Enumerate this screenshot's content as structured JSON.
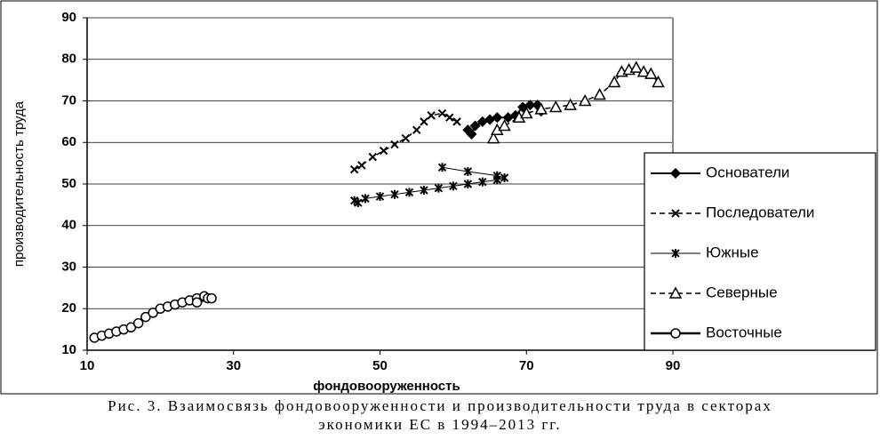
{
  "chart_data": {
    "type": "line",
    "xlabel": "фондовооруженность",
    "ylabel": "производительность труда",
    "xlim": [
      10,
      90
    ],
    "xticks": [
      10,
      30,
      50,
      70,
      90
    ],
    "ylim": [
      10,
      90
    ],
    "yticks": [
      10,
      20,
      30,
      40,
      50,
      60,
      70,
      80,
      90
    ],
    "grid": true,
    "legend": "right",
    "series": [
      {
        "name": "Основатели",
        "color": "#000000",
        "line_style": "solid",
        "marker": "diamond",
        "line_width": 2,
        "x": [
          62,
          62.5,
          63,
          64,
          65,
          66,
          67.5,
          68.5,
          69.5,
          70.5,
          71.5,
          72
        ],
        "values": [
          63,
          62,
          64,
          65,
          65.5,
          66,
          66,
          66.5,
          68.5,
          69,
          69,
          67.5
        ]
      },
      {
        "name": "Последователи",
        "color": "#000000",
        "line_style": "dashed",
        "marker": "x",
        "line_width": 1.5,
        "x": [
          46.5,
          47.5,
          49,
          50.5,
          52,
          53.5,
          55,
          56,
          57,
          58.5,
          59.5,
          60.5
        ],
        "values": [
          53.5,
          54.5,
          56.5,
          58,
          59.5,
          61,
          63,
          65,
          66.5,
          67,
          66,
          65
        ]
      },
      {
        "name": "Южные",
        "color": "#000000",
        "line_style": "solid",
        "marker": "star",
        "line_width": 1,
        "x": [
          46.5,
          47,
          48,
          50,
          52,
          54,
          56,
          58,
          60,
          62,
          64,
          66,
          67,
          66,
          62,
          58.5
        ],
        "values": [
          46,
          45.5,
          46.5,
          47,
          47.5,
          48,
          48.5,
          49,
          49.5,
          50,
          50.5,
          51,
          51.5,
          52,
          53,
          54
        ]
      },
      {
        "name": "Северные",
        "color": "#000000",
        "line_style": "dashed",
        "marker": "triangle",
        "line_width": 1.5,
        "x": [
          65.5,
          66,
          67,
          69,
          70,
          72,
          74,
          76,
          78,
          80,
          82,
          83,
          84,
          85,
          86,
          87,
          88
        ],
        "values": [
          61,
          63,
          64,
          66,
          67,
          68,
          68.5,
          69,
          70,
          71.5,
          74.5,
          77,
          77.5,
          78,
          77,
          76.5,
          74.5
        ]
      },
      {
        "name": "Восточные",
        "color": "#000000",
        "line_style": "solid",
        "marker": "circle",
        "line_width": 2.5,
        "x": [
          11,
          12,
          13,
          14,
          15,
          16,
          17,
          18,
          19,
          20,
          21,
          22,
          23,
          24,
          25,
          26,
          26.5,
          27,
          25
        ],
        "values": [
          13,
          13.5,
          14,
          14.5,
          15,
          15.5,
          16.5,
          18,
          19,
          20,
          20.5,
          21,
          21.5,
          22,
          22.5,
          23,
          22.5,
          22.5,
          21.5
        ]
      }
    ]
  },
  "caption": [
    "Рис. 3. Взаимосвязь фондовооруженности и производительности труда в секторах",
    "экономики ЕС в 1994–2013 гг."
  ]
}
